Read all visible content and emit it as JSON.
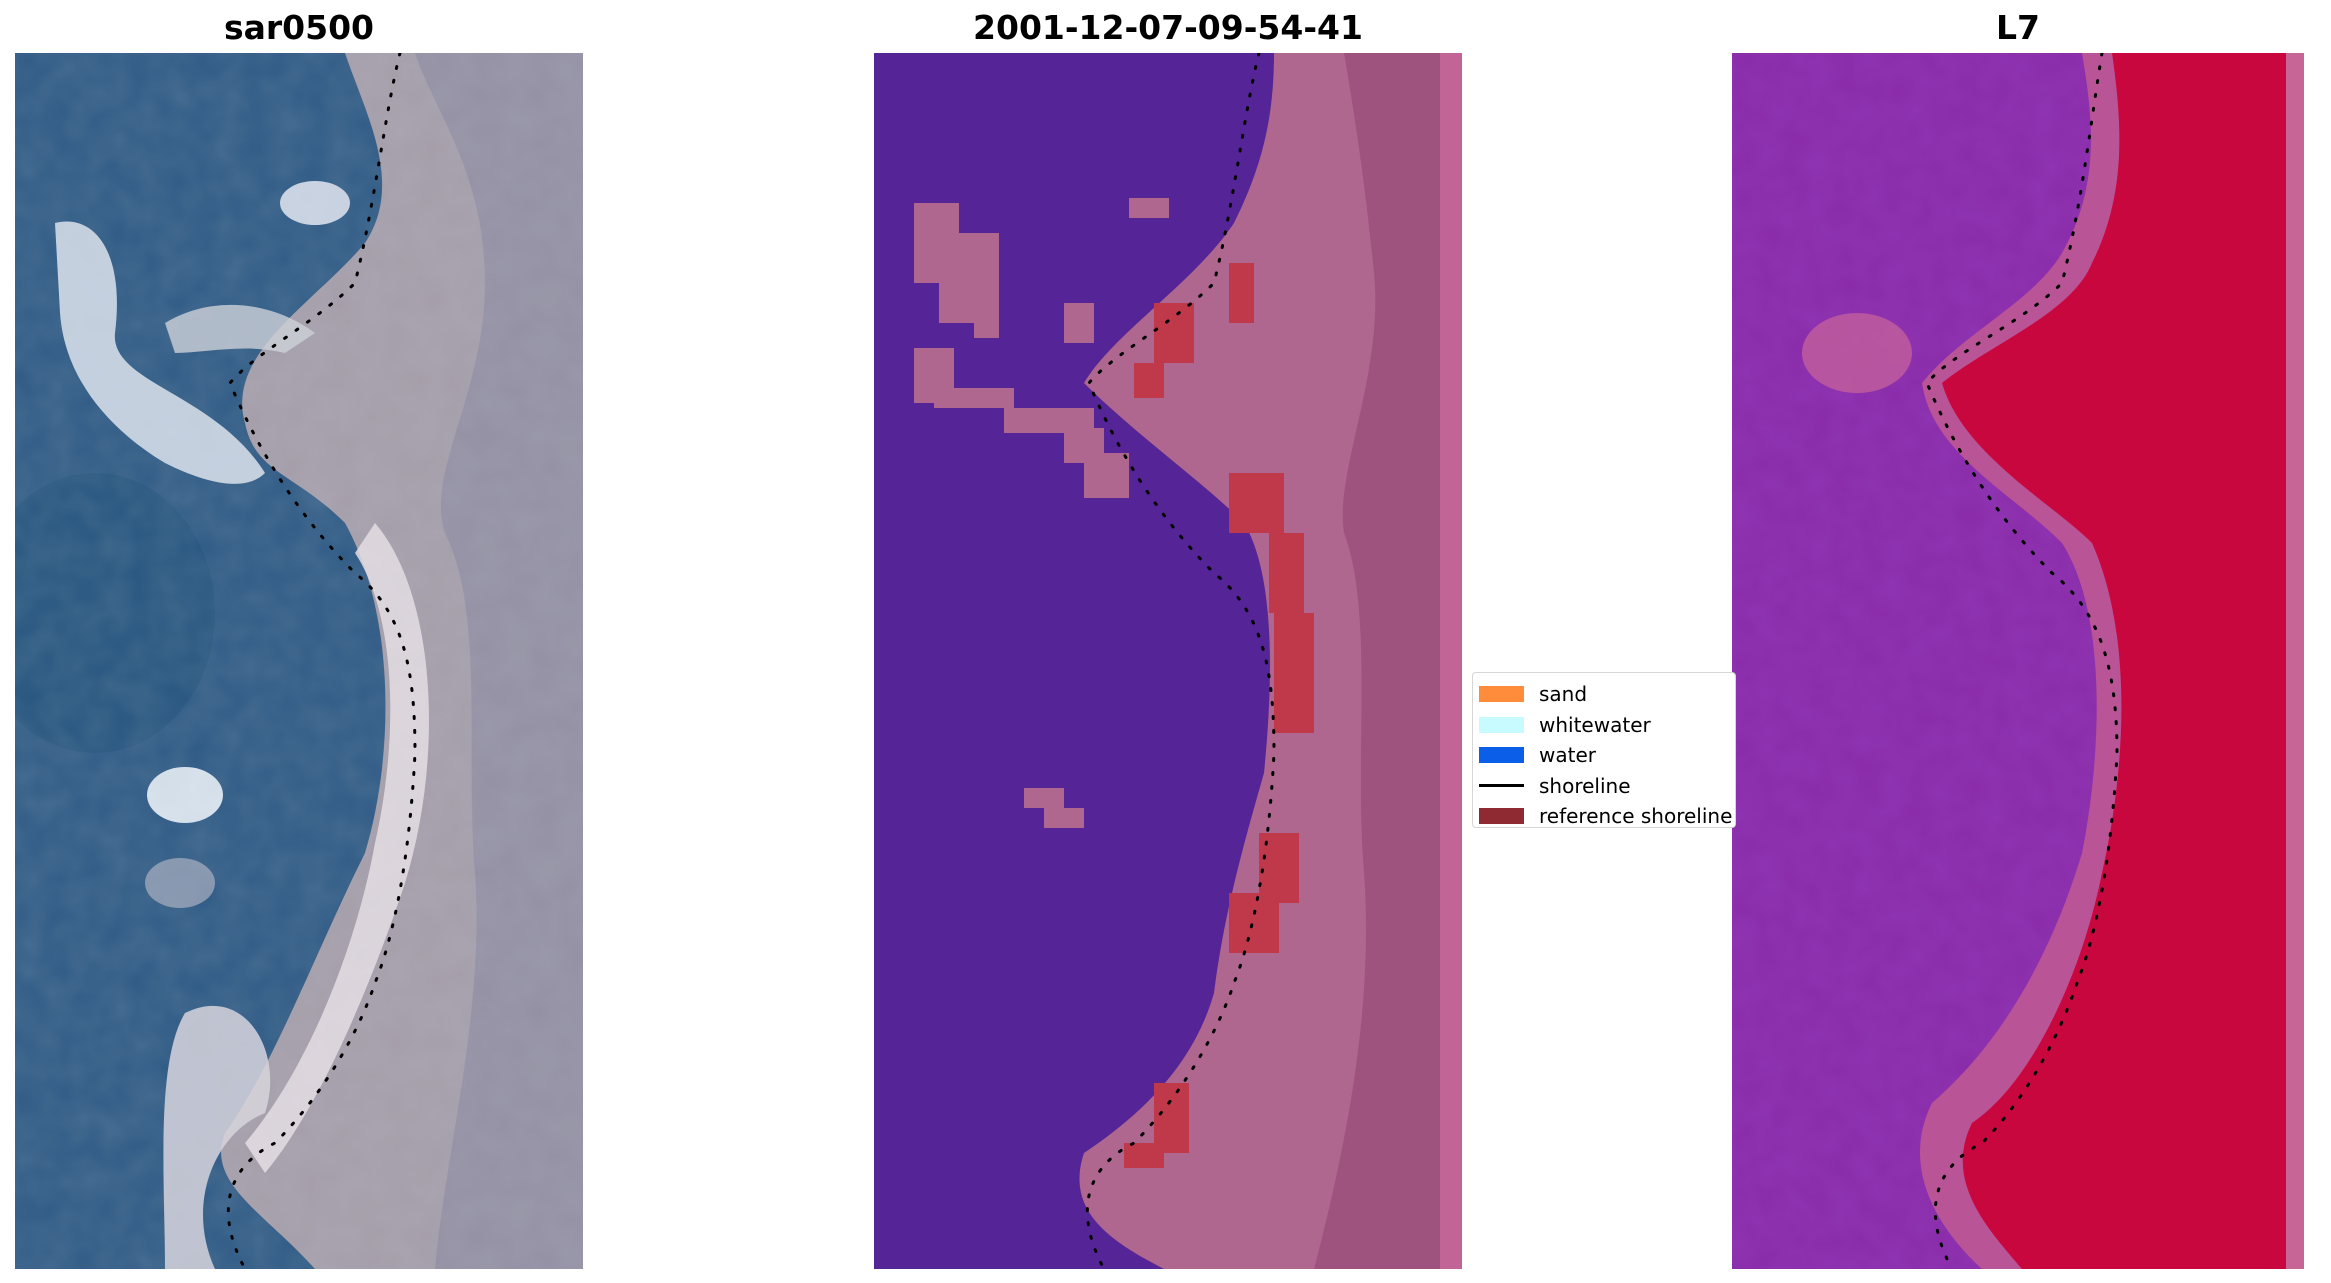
{
  "panels": [
    {
      "title": "sar0500"
    },
    {
      "title": "2001-12-07-09-54-41"
    },
    {
      "title": "L7"
    }
  ],
  "legend": {
    "items": [
      {
        "label": "sand",
        "color": "#ff8c3a"
      },
      {
        "label": "whitewater",
        "color": "#c8fbff"
      },
      {
        "label": "water",
        "color": "#0a5ee8"
      },
      {
        "label": "shoreline",
        "color": "#000000"
      },
      {
        "label": "reference shoreline",
        "color": "#8f2a33"
      }
    ]
  },
  "colors": {
    "water_class": "#552497",
    "sand_overlay": "#b0678f",
    "reference_overlay": "#c0394a",
    "index_water": "#8a2ba8",
    "index_land": "#c8073e"
  }
}
